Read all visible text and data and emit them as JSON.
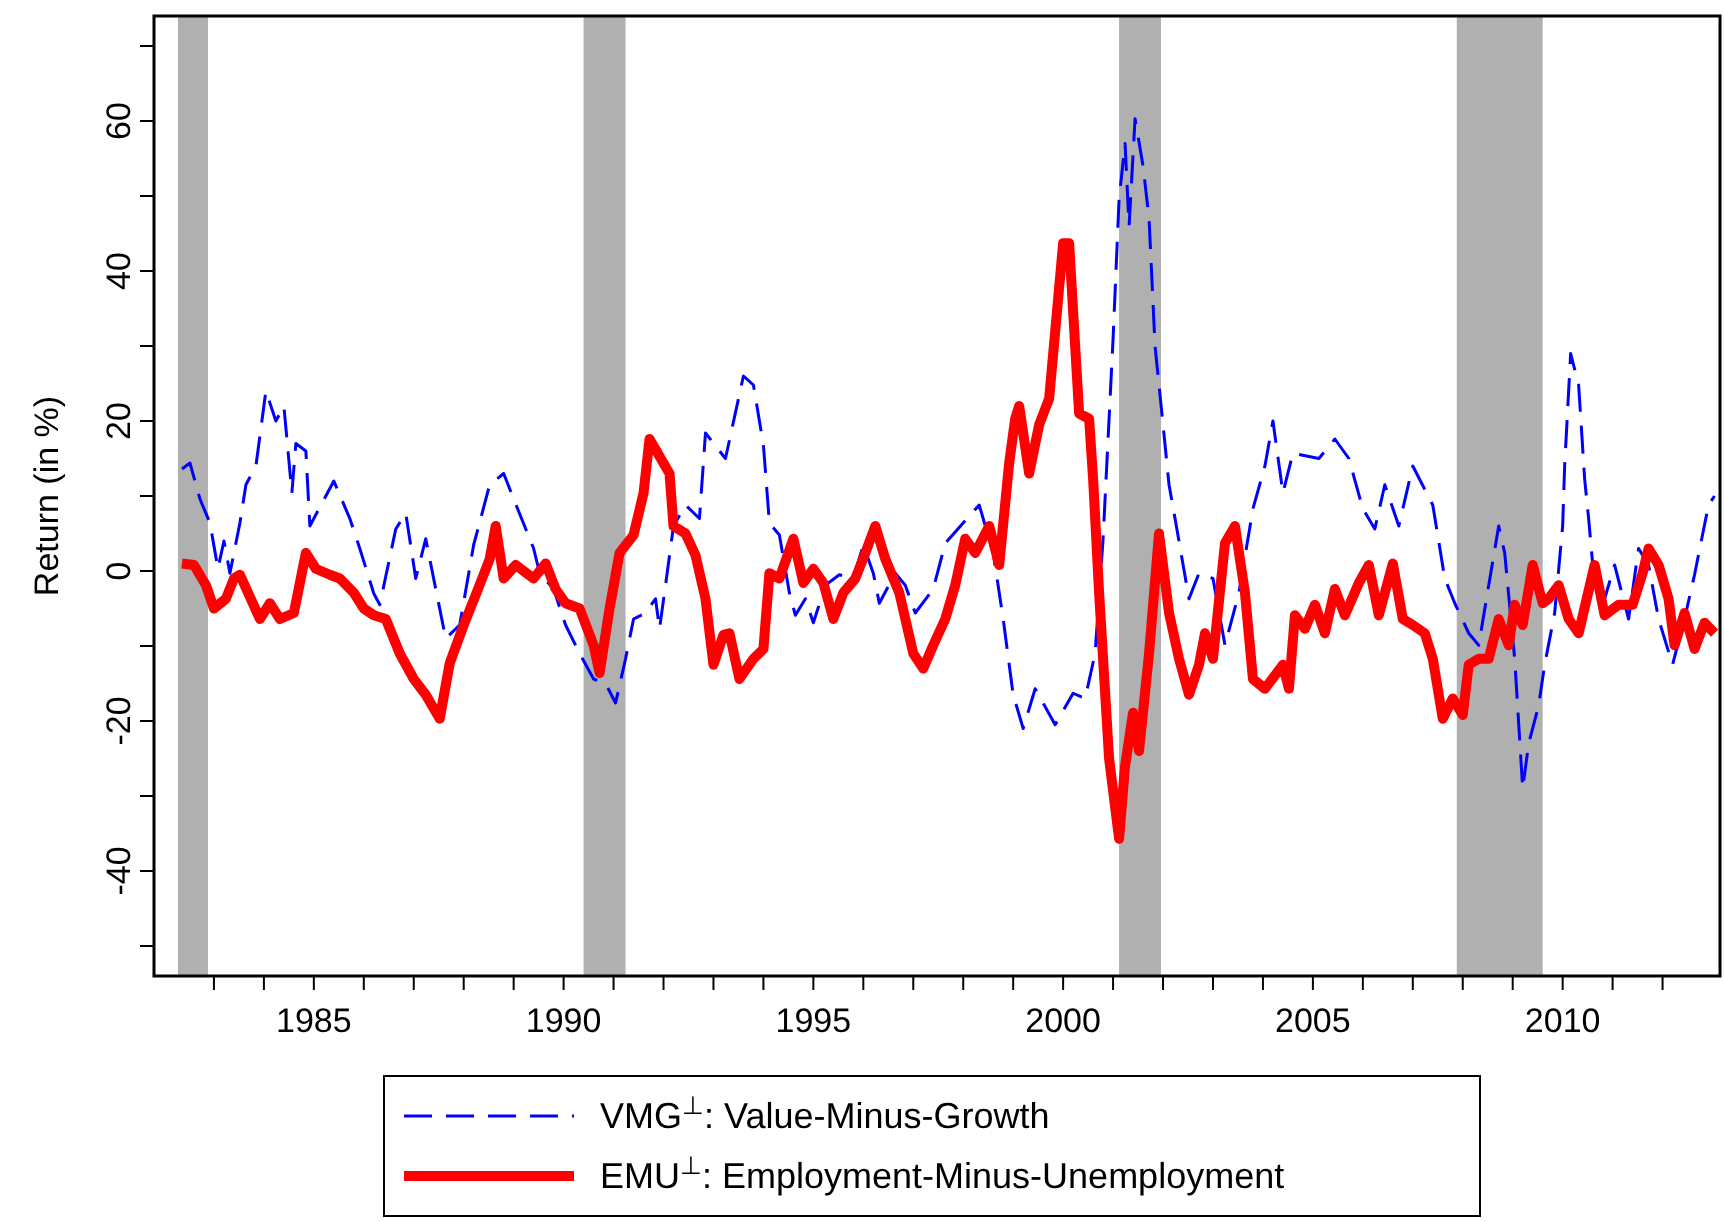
{
  "chart_data": {
    "type": "line",
    "ylabel": "Return (in %)",
    "xlim": [
      1981.8,
      2013.15
    ],
    "ylim": [
      -54,
      74
    ],
    "xticks": [
      {
        "value": 1983,
        "label": null
      },
      {
        "value": 1984,
        "label": null
      },
      1985,
      {
        "value": 1986,
        "label": null
      },
      {
        "value": 1987,
        "label": null
      },
      {
        "value": 1988,
        "label": null
      },
      {
        "value": 1989,
        "label": null
      },
      1990,
      {
        "value": 1991,
        "label": null
      },
      {
        "value": 1992,
        "label": null
      },
      {
        "value": 1993,
        "label": null
      },
      {
        "value": 1994,
        "label": null
      },
      1995,
      {
        "value": 1996,
        "label": null
      },
      {
        "value": 1997,
        "label": null
      },
      {
        "value": 1998,
        "label": null
      },
      {
        "value": 1999,
        "label": null
      },
      2000,
      {
        "value": 2001,
        "label": null
      },
      {
        "value": 2002,
        "label": null
      },
      {
        "value": 2003,
        "label": null
      },
      {
        "value": 2004,
        "label": null
      },
      2005,
      {
        "value": 2006,
        "label": null
      },
      {
        "value": 2007,
        "label": null
      },
      {
        "value": 2008,
        "label": null
      },
      {
        "value": 2009,
        "label": null
      },
      2010,
      {
        "value": 2011,
        "label": null
      },
      {
        "value": 2012,
        "label": null
      }
    ],
    "yticks": [
      {
        "value": -50,
        "label": null
      },
      -40,
      {
        "value": -30,
        "label": null
      },
      -20,
      {
        "value": -10,
        "label": null
      },
      0,
      {
        "value": 10,
        "label": null
      },
      20,
      {
        "value": 30,
        "label": null
      },
      40,
      {
        "value": 50,
        "label": null
      },
      60,
      {
        "value": 70,
        "label": null
      }
    ],
    "legend": "bottom",
    "grid": false,
    "bands": [
      {
        "axis": "x",
        "from": 1982.28,
        "to": 1982.88,
        "color": "#b0b0b0"
      },
      {
        "axis": "x",
        "from": 1990.4,
        "to": 1991.24,
        "color": "#b0b0b0"
      },
      {
        "axis": "x",
        "from": 2001.12,
        "to": 2001.96,
        "color": "#b0b0b0"
      },
      {
        "axis": "x",
        "from": 2007.88,
        "to": 2009.6,
        "color": "#b0b0b0"
      }
    ],
    "series": [
      {
        "name": "VMG$^{⊥}$: Value-Minus-Growth",
        "color": "#0000ff",
        "line_style": "dashed",
        "x": [
          1982.36,
          1982.52,
          1982.72,
          1982.92,
          1983.08,
          1983.2,
          1983.32,
          1983.52,
          1983.64,
          1983.84,
          1984.04,
          1984.24,
          1984.4,
          1984.56,
          1984.64,
          1984.84,
          1984.92,
          1985.4,
          1985.72,
          1985.92,
          1986.2,
          1986.32,
          1986.64,
          1986.84,
          1987.04,
          1987.24,
          1987.44,
          1987.64,
          1987.92,
          1988.2,
          1988.52,
          1988.8,
          1989.0,
          1989.4,
          1989.52,
          1989.8,
          1990.04,
          1990.32,
          1990.6,
          1990.84,
          1991.04,
          1991.24,
          1991.4,
          1991.64,
          1991.84,
          1991.92,
          1992.04,
          1992.2,
          1992.44,
          1992.72,
          1992.84,
          1993.24,
          1993.6,
          1993.8,
          1994.0,
          1994.12,
          1994.32,
          1994.52,
          1994.64,
          1994.84,
          1995.0,
          1995.24,
          1995.52,
          1995.8,
          1996.0,
          1996.2,
          1996.32,
          1996.64,
          1996.84,
          1997.04,
          1997.4,
          1997.64,
          1998.32,
          1998.6,
          1998.8,
          1999.0,
          1999.2,
          1999.44,
          1999.84,
          2000.2,
          2000.44,
          2000.64,
          2000.8,
          2001.0,
          2001.12,
          2001.24,
          2001.32,
          2001.44,
          2001.6,
          2001.72,
          2001.84,
          2002.0,
          2002.12,
          2002.24,
          2002.52,
          2002.72,
          2003.0,
          2003.24,
          2003.52,
          2003.8,
          2004.04,
          2004.2,
          2004.4,
          2004.6,
          2005.12,
          2005.44,
          2005.72,
          2006.0,
          2006.24,
          2006.44,
          2006.72,
          2007.0,
          2007.4,
          2007.64,
          2007.84,
          2008.12,
          2008.32,
          2008.52,
          2008.72,
          2008.84,
          2009.04,
          2009.2,
          2009.32,
          2009.52,
          2009.64,
          2009.84,
          2010.0,
          2010.04,
          2010.16,
          2010.32,
          2010.44,
          2010.52,
          2010.64,
          2010.84,
          2011.04,
          2011.32,
          2011.52,
          2011.72,
          2011.92,
          2012.2,
          2012.44,
          2012.64,
          2012.92,
          2013.04
        ],
        "values": [
          13.6,
          14.4,
          9.6,
          6.4,
          0.3,
          4,
          -0.3,
          6.4,
          11.5,
          14,
          24,
          20,
          22,
          10.4,
          17,
          16,
          6,
          12,
          7,
          3,
          -3,
          -4.5,
          5.6,
          7.7,
          -1,
          4.3,
          -2.4,
          -9,
          -7.2,
          3.5,
          11.5,
          13,
          9.6,
          3,
          -0.3,
          -2.4,
          -7.2,
          -11,
          -14.4,
          -15,
          -17.6,
          -11.7,
          -6.4,
          -5.6,
          -3.7,
          -7.7,
          -1.9,
          6,
          8.8,
          7,
          18.4,
          15,
          26,
          24.8,
          16.8,
          6.4,
          4.8,
          -2.9,
          -5.9,
          -3.7,
          -6.9,
          -1.9,
          -0.5,
          -1,
          3.5,
          -0.3,
          -4.3,
          -0.3,
          -1.9,
          -5.6,
          -2.4,
          3.7,
          8.8,
          2.4,
          -6.4,
          -16.5,
          -21,
          -15.7,
          -20.5,
          -16.3,
          -17,
          -11,
          4.3,
          31,
          49.6,
          57,
          46,
          60.3,
          54,
          47,
          30,
          19.5,
          11.5,
          7,
          -3.7,
          -0.3,
          -1,
          -9.9,
          -2.9,
          8.3,
          14,
          20,
          10.4,
          15.7,
          15,
          17.6,
          15,
          8.3,
          5.6,
          11.5,
          6,
          14,
          8.8,
          -1,
          -4.3,
          -8.3,
          -9.9,
          -1.9,
          6,
          2.4,
          -11.7,
          -29,
          -23,
          -17.9,
          -12.5,
          -5.6,
          6,
          14,
          29,
          24.8,
          12.3,
          7,
          -1.9,
          -3.7,
          0.8,
          -6.4,
          3,
          0.8,
          -6.4,
          -12.5,
          -6.4,
          -0.5,
          8.8,
          10
        ]
      },
      {
        "name": "EMU$^{⊥}$: Employment-Minus-Unemployment",
        "color": "#ff0000",
        "line_style": "solid",
        "x": [
          1982.36,
          1982.6,
          1982.84,
          1983.0,
          1983.24,
          1983.4,
          1983.52,
          1983.92,
          1984.12,
          1984.32,
          1984.6,
          1984.84,
          1985.04,
          1985.32,
          1985.52,
          1985.8,
          1986.0,
          1986.2,
          1986.44,
          1986.72,
          1987.0,
          1987.24,
          1987.52,
          1987.72,
          1988.0,
          1988.24,
          1988.52,
          1988.64,
          1988.8,
          1989.04,
          1989.4,
          1989.64,
          1989.84,
          1990.04,
          1990.32,
          1990.6,
          1990.72,
          1990.92,
          1991.12,
          1991.4,
          1991.6,
          1991.72,
          1992.12,
          1992.2,
          1992.44,
          1992.64,
          1992.84,
          1993.0,
          1993.2,
          1993.32,
          1993.52,
          1993.8,
          1994.0,
          1994.12,
          1994.32,
          1994.6,
          1994.8,
          1995.0,
          1995.2,
          1995.4,
          1995.6,
          1995.84,
          1996.04,
          1996.24,
          1996.44,
          1996.72,
          1997.0,
          1997.2,
          1997.4,
          1997.64,
          1997.84,
          1998.04,
          1998.24,
          1998.52,
          1998.72,
          1998.92,
          1999.04,
          1999.12,
          1999.32,
          1999.52,
          1999.72,
          2000.0,
          2000.12,
          2000.32,
          2000.52,
          2000.6,
          2000.72,
          2000.92,
          2001.12,
          2001.24,
          2001.4,
          2001.52,
          2001.72,
          2001.92,
          2002.12,
          2002.32,
          2002.52,
          2002.72,
          2002.84,
          2003.0,
          2003.24,
          2003.44,
          2003.64,
          2003.8,
          2004.04,
          2004.4,
          2004.52,
          2004.64,
          2004.84,
          2005.04,
          2005.24,
          2005.44,
          2005.64,
          2005.92,
          2006.12,
          2006.32,
          2006.6,
          2006.8,
          2007.0,
          2007.24,
          2007.4,
          2007.6,
          2007.8,
          2008.0,
          2008.12,
          2008.32,
          2008.52,
          2008.72,
          2008.92,
          2009.04,
          2009.2,
          2009.4,
          2009.6,
          2009.72,
          2009.92,
          2010.12,
          2010.32,
          2010.64,
          2010.84,
          2011.12,
          2011.4,
          2011.6,
          2011.72,
          2011.92,
          2012.12,
          2012.24,
          2012.44,
          2012.64,
          2012.84,
          2013.04
        ],
        "values": [
          1,
          0.8,
          -1.9,
          -5,
          -3.7,
          -1,
          -0.5,
          -6.4,
          -4.3,
          -6.4,
          -5.6,
          2.4,
          0.3,
          -0.5,
          -1,
          -2.9,
          -5,
          -5.9,
          -6.4,
          -11,
          -14.4,
          -16.5,
          -19.7,
          -12.3,
          -7.2,
          -3.2,
          1.6,
          6,
          -1,
          0.8,
          -1,
          1,
          -2.4,
          -4.3,
          -5,
          -9.9,
          -13.6,
          -5,
          2.4,
          4.8,
          10.4,
          17.6,
          13,
          6,
          5,
          2.1,
          -3.7,
          -12.5,
          -8.5,
          -8.3,
          -14.4,
          -11.7,
          -10.4,
          -0.3,
          -1,
          4.3,
          -1.6,
          0.3,
          -1.6,
          -6.4,
          -2.9,
          -1,
          2.4,
          6,
          1.6,
          -2.9,
          -11,
          -13,
          -9.9,
          -6.4,
          -1.9,
          4.3,
          2.4,
          6,
          0.8,
          14.4,
          20.3,
          22,
          13,
          19.5,
          23,
          43.7,
          43.7,
          21,
          20.3,
          12.3,
          -2.9,
          -25,
          -35.7,
          -26,
          -18.9,
          -24,
          -11,
          5,
          -5.6,
          -11.7,
          -16.5,
          -12.5,
          -8.3,
          -11.7,
          3.7,
          6,
          -2.9,
          -14.4,
          -15.7,
          -12.5,
          -15.7,
          -5.9,
          -7.7,
          -4.5,
          -8.3,
          -2.4,
          -5.9,
          -1.6,
          0.8,
          -5.9,
          1,
          -6.4,
          -7.2,
          -8.3,
          -11.7,
          -19.7,
          -17,
          -19.2,
          -12.5,
          -11.7,
          -11.7,
          -6.4,
          -9.9,
          -4.5,
          -7.2,
          0.8,
          -4.3,
          -3.7,
          -1.9,
          -6.4,
          -8.3,
          0.8,
          -5.9,
          -4.5,
          -4.5,
          -0.3,
          3,
          0.8,
          -3.7,
          -9.9,
          -5.6,
          -10.4,
          -6.9,
          -8.3
        ]
      }
    ]
  }
}
